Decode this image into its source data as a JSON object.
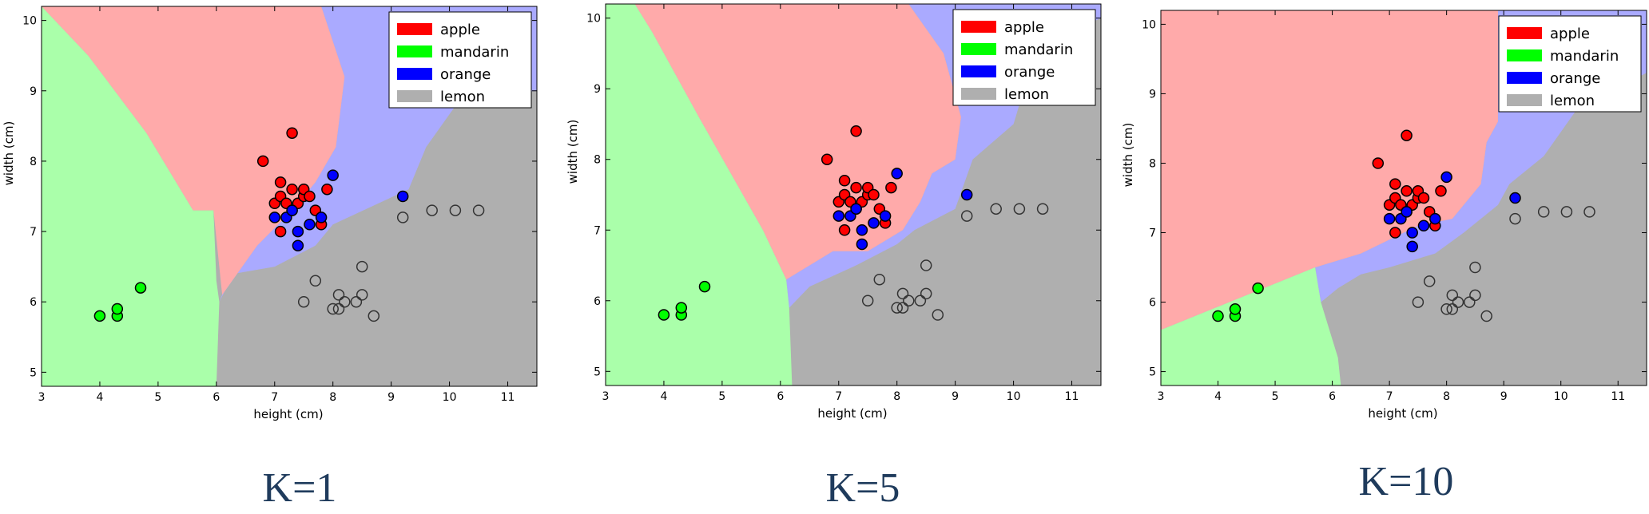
{
  "colors": {
    "apple": "#ff0000",
    "mandarin": "#00ff00",
    "orange": "#0000ff",
    "lemon_edge": "#333333",
    "region_apple": "#ffaaaa",
    "region_mandarin": "#aaffaa",
    "region_orange": "#aaaaff",
    "region_lemon": "#afafaf",
    "caption_color": "#1f3b5c"
  },
  "chart_data": [
    {
      "type": "scatter",
      "caption": "K=1",
      "xlabel": "height (cm)",
      "ylabel": "width (cm)",
      "xlim": [
        3,
        11.5
      ],
      "ylim": [
        4.8,
        10.2
      ],
      "xticks": [
        3,
        4,
        5,
        6,
        7,
        8,
        9,
        10,
        11
      ],
      "yticks": [
        5,
        6,
        7,
        8,
        9,
        10
      ],
      "legend": {
        "position": "top-right",
        "entries": [
          "apple",
          "mandarin",
          "orange",
          "lemon"
        ]
      },
      "series": [
        {
          "name": "apple",
          "points": [
            [
              6.8,
              8.0
            ],
            [
              7.3,
              8.4
            ],
            [
              7.0,
              7.4
            ],
            [
              7.1,
              7.5
            ],
            [
              7.1,
              7.7
            ],
            [
              7.2,
              7.4
            ],
            [
              7.3,
              7.6
            ],
            [
              7.3,
              7.3
            ],
            [
              7.4,
              7.4
            ],
            [
              7.5,
              7.5
            ],
            [
              7.5,
              7.6
            ],
            [
              7.6,
              7.5
            ],
            [
              7.7,
              7.3
            ],
            [
              7.9,
              7.6
            ],
            [
              7.1,
              7.0
            ],
            [
              7.8,
              7.1
            ]
          ]
        },
        {
          "name": "mandarin",
          "points": [
            [
              4.0,
              5.8
            ],
            [
              4.3,
              5.8
            ],
            [
              4.3,
              5.9
            ],
            [
              4.7,
              6.2
            ]
          ]
        },
        {
          "name": "orange",
          "points": [
            [
              7.0,
              7.2
            ],
            [
              7.2,
              7.2
            ],
            [
              7.3,
              7.3
            ],
            [
              7.4,
              7.0
            ],
            [
              7.4,
              6.8
            ],
            [
              7.6,
              7.1
            ],
            [
              7.8,
              7.2
            ],
            [
              8.0,
              7.8
            ],
            [
              9.2,
              7.5
            ]
          ]
        },
        {
          "name": "lemon",
          "points": [
            [
              7.5,
              6.0
            ],
            [
              7.7,
              6.3
            ],
            [
              8.0,
              5.9
            ],
            [
              8.1,
              5.9
            ],
            [
              8.1,
              6.1
            ],
            [
              8.2,
              6.0
            ],
            [
              8.4,
              6.0
            ],
            [
              8.5,
              6.1
            ],
            [
              8.5,
              6.5
            ],
            [
              8.7,
              5.8
            ],
            [
              9.2,
              7.2
            ],
            [
              9.7,
              7.3
            ],
            [
              10.1,
              7.3
            ],
            [
              10.5,
              7.3
            ]
          ]
        }
      ],
      "regions": {
        "mandarin": [
          [
            3,
            4.8
          ],
          [
            6.0,
            4.8
          ],
          [
            6.05,
            6.0
          ],
          [
            6.0,
            6.3
          ],
          [
            5.95,
            7.3
          ],
          [
            5.6,
            7.3
          ],
          [
            4.8,
            8.4
          ],
          [
            3.8,
            9.5
          ],
          [
            3.0,
            10.2
          ]
        ],
        "apple": [
          [
            3.0,
            10.2
          ],
          [
            7.8,
            10.2
          ],
          [
            8.2,
            9.2
          ],
          [
            8.05,
            8.2
          ],
          [
            7.7,
            7.7
          ],
          [
            7.3,
            7.3
          ],
          [
            6.7,
            6.8
          ],
          [
            6.1,
            6.1
          ],
          [
            5.95,
            7.3
          ],
          [
            5.6,
            7.3
          ],
          [
            4.8,
            8.4
          ],
          [
            3.8,
            9.5
          ]
        ],
        "orange": [
          [
            7.8,
            10.2
          ],
          [
            11.5,
            10.2
          ],
          [
            11.5,
            9.0
          ],
          [
            10.2,
            8.9
          ],
          [
            9.6,
            8.2
          ],
          [
            9.3,
            7.6
          ],
          [
            8.0,
            7.1
          ],
          [
            7.7,
            6.8
          ],
          [
            7.0,
            6.5
          ],
          [
            6.3,
            6.4
          ],
          [
            6.05,
            6.0
          ],
          [
            6.1,
            6.1
          ],
          [
            6.7,
            6.8
          ],
          [
            7.3,
            7.3
          ],
          [
            7.7,
            7.7
          ],
          [
            8.05,
            8.2
          ],
          [
            8.2,
            9.2
          ]
        ]
      }
    },
    {
      "type": "scatter",
      "caption": "K=5",
      "xlabel": "height (cm)",
      "ylabel": "width (cm)",
      "xlim": [
        3,
        11.5
      ],
      "ylim": [
        4.8,
        10.2
      ],
      "xticks": [
        3,
        4,
        5,
        6,
        7,
        8,
        9,
        10,
        11
      ],
      "yticks": [
        5,
        6,
        7,
        8,
        9,
        10
      ],
      "legend": {
        "position": "top-right",
        "entries": [
          "apple",
          "mandarin",
          "orange",
          "lemon"
        ]
      },
      "series": [
        {
          "name": "apple",
          "points": [
            [
              6.8,
              8.0
            ],
            [
              7.3,
              8.4
            ],
            [
              7.0,
              7.4
            ],
            [
              7.1,
              7.5
            ],
            [
              7.1,
              7.7
            ],
            [
              7.2,
              7.4
            ],
            [
              7.3,
              7.6
            ],
            [
              7.3,
              7.3
            ],
            [
              7.4,
              7.4
            ],
            [
              7.5,
              7.5
            ],
            [
              7.5,
              7.6
            ],
            [
              7.6,
              7.5
            ],
            [
              7.7,
              7.3
            ],
            [
              7.9,
              7.6
            ],
            [
              7.1,
              7.0
            ],
            [
              7.8,
              7.1
            ]
          ]
        },
        {
          "name": "mandarin",
          "points": [
            [
              4.0,
              5.8
            ],
            [
              4.3,
              5.8
            ],
            [
              4.3,
              5.9
            ],
            [
              4.7,
              6.2
            ]
          ]
        },
        {
          "name": "orange",
          "points": [
            [
              7.0,
              7.2
            ],
            [
              7.2,
              7.2
            ],
            [
              7.3,
              7.3
            ],
            [
              7.4,
              7.0
            ],
            [
              7.4,
              6.8
            ],
            [
              7.6,
              7.1
            ],
            [
              7.8,
              7.2
            ],
            [
              8.0,
              7.8
            ],
            [
              9.2,
              7.5
            ]
          ]
        },
        {
          "name": "lemon",
          "points": [
            [
              7.5,
              6.0
            ],
            [
              7.7,
              6.3
            ],
            [
              8.0,
              5.9
            ],
            [
              8.1,
              5.9
            ],
            [
              8.1,
              6.1
            ],
            [
              8.2,
              6.0
            ],
            [
              8.4,
              6.0
            ],
            [
              8.5,
              6.1
            ],
            [
              8.5,
              6.5
            ],
            [
              8.7,
              5.8
            ],
            [
              9.2,
              7.2
            ],
            [
              9.7,
              7.3
            ],
            [
              10.1,
              7.3
            ],
            [
              10.5,
              7.3
            ]
          ]
        }
      ],
      "regions": {
        "mandarin": [
          [
            3,
            4.8
          ],
          [
            6.2,
            4.8
          ],
          [
            6.15,
            5.9
          ],
          [
            6.1,
            6.3
          ],
          [
            5.7,
            7.0
          ],
          [
            4.6,
            8.6
          ],
          [
            3.8,
            9.8
          ],
          [
            3.5,
            10.2
          ],
          [
            3,
            10.2
          ]
        ],
        "apple": [
          [
            3.5,
            10.2
          ],
          [
            8.2,
            10.2
          ],
          [
            8.8,
            9.5
          ],
          [
            9.1,
            8.6
          ],
          [
            9.0,
            8.0
          ],
          [
            8.6,
            7.8
          ],
          [
            8.4,
            7.4
          ],
          [
            8.1,
            7.0
          ],
          [
            7.5,
            6.7
          ],
          [
            6.9,
            6.7
          ],
          [
            6.5,
            6.5
          ],
          [
            6.1,
            6.3
          ],
          [
            5.7,
            7.0
          ],
          [
            4.6,
            8.6
          ],
          [
            3.8,
            9.8
          ]
        ],
        "orange": [
          [
            8.2,
            10.2
          ],
          [
            11.5,
            10.2
          ],
          [
            11.5,
            10.0
          ],
          [
            10.4,
            9.6
          ],
          [
            10.0,
            8.5
          ],
          [
            9.3,
            8.0
          ],
          [
            9.0,
            7.3
          ],
          [
            8.3,
            7.0
          ],
          [
            8.0,
            6.8
          ],
          [
            7.3,
            6.5
          ],
          [
            6.5,
            6.2
          ],
          [
            6.15,
            5.9
          ],
          [
            6.1,
            6.3
          ],
          [
            6.5,
            6.5
          ],
          [
            6.9,
            6.7
          ],
          [
            7.5,
            6.7
          ],
          [
            8.1,
            7.0
          ],
          [
            8.4,
            7.4
          ],
          [
            8.6,
            7.8
          ],
          [
            9.0,
            8.0
          ],
          [
            9.1,
            8.6
          ],
          [
            8.8,
            9.5
          ]
        ]
      }
    },
    {
      "type": "scatter",
      "caption": "K=10",
      "xlabel": "height (cm)",
      "ylabel": "width (cm)",
      "xlim": [
        3,
        11.5
      ],
      "ylim": [
        4.8,
        10.2
      ],
      "xticks": [
        3,
        4,
        5,
        6,
        7,
        8,
        9,
        10,
        11
      ],
      "yticks": [
        5,
        6,
        7,
        8,
        9,
        10
      ],
      "legend": {
        "position": "top-right",
        "entries": [
          "apple",
          "mandarin",
          "orange",
          "lemon"
        ]
      },
      "series": [
        {
          "name": "apple",
          "points": [
            [
              6.8,
              8.0
            ],
            [
              7.3,
              8.4
            ],
            [
              7.0,
              7.4
            ],
            [
              7.1,
              7.5
            ],
            [
              7.1,
              7.7
            ],
            [
              7.2,
              7.4
            ],
            [
              7.3,
              7.6
            ],
            [
              7.3,
              7.3
            ],
            [
              7.4,
              7.4
            ],
            [
              7.5,
              7.5
            ],
            [
              7.5,
              7.6
            ],
            [
              7.6,
              7.5
            ],
            [
              7.7,
              7.3
            ],
            [
              7.9,
              7.6
            ],
            [
              7.1,
              7.0
            ],
            [
              7.8,
              7.1
            ]
          ]
        },
        {
          "name": "mandarin",
          "points": [
            [
              4.0,
              5.8
            ],
            [
              4.3,
              5.8
            ],
            [
              4.3,
              5.9
            ],
            [
              4.7,
              6.2
            ]
          ]
        },
        {
          "name": "orange",
          "points": [
            [
              7.0,
              7.2
            ],
            [
              7.2,
              7.2
            ],
            [
              7.3,
              7.3
            ],
            [
              7.4,
              7.0
            ],
            [
              7.4,
              6.8
            ],
            [
              7.6,
              7.1
            ],
            [
              7.8,
              7.2
            ],
            [
              8.0,
              7.8
            ],
            [
              9.2,
              7.5
            ]
          ]
        },
        {
          "name": "lemon",
          "points": [
            [
              7.5,
              6.0
            ],
            [
              7.7,
              6.3
            ],
            [
              8.0,
              5.9
            ],
            [
              8.1,
              5.9
            ],
            [
              8.1,
              6.1
            ],
            [
              8.2,
              6.0
            ],
            [
              8.4,
              6.0
            ],
            [
              8.5,
              6.1
            ],
            [
              8.5,
              6.5
            ],
            [
              8.7,
              5.8
            ],
            [
              9.2,
              7.2
            ],
            [
              9.7,
              7.3
            ],
            [
              10.1,
              7.3
            ],
            [
              10.5,
              7.3
            ]
          ]
        }
      ],
      "regions": {
        "mandarin": [
          [
            3,
            4.8
          ],
          [
            6.15,
            4.8
          ],
          [
            6.1,
            5.2
          ],
          [
            5.8,
            6.0
          ],
          [
            5.7,
            6.5
          ],
          [
            4.8,
            6.2
          ],
          [
            3,
            5.6
          ]
        ],
        "apple": [
          [
            3,
            5.6
          ],
          [
            4.8,
            6.2
          ],
          [
            5.7,
            6.5
          ],
          [
            6.5,
            6.7
          ],
          [
            7.0,
            6.9
          ],
          [
            7.5,
            7.1
          ],
          [
            8.1,
            7.2
          ],
          [
            8.6,
            7.7
          ],
          [
            8.7,
            8.3
          ],
          [
            8.9,
            8.6
          ],
          [
            8.9,
            10.2
          ],
          [
            3,
            10.2
          ]
        ],
        "orange": [
          [
            8.9,
            10.2
          ],
          [
            11.5,
            10.2
          ],
          [
            11.5,
            9.3
          ],
          [
            10.3,
            8.8
          ],
          [
            9.7,
            8.1
          ],
          [
            9.1,
            7.7
          ],
          [
            8.9,
            7.4
          ],
          [
            8.3,
            7.0
          ],
          [
            7.8,
            6.7
          ],
          [
            7.0,
            6.5
          ],
          [
            6.5,
            6.4
          ],
          [
            6.1,
            6.2
          ],
          [
            5.8,
            6.0
          ],
          [
            5.7,
            6.5
          ],
          [
            6.5,
            6.7
          ],
          [
            7.0,
            6.9
          ],
          [
            7.5,
            7.1
          ],
          [
            8.1,
            7.2
          ],
          [
            8.6,
            7.7
          ],
          [
            8.7,
            8.3
          ],
          [
            8.9,
            8.6
          ]
        ]
      }
    }
  ]
}
